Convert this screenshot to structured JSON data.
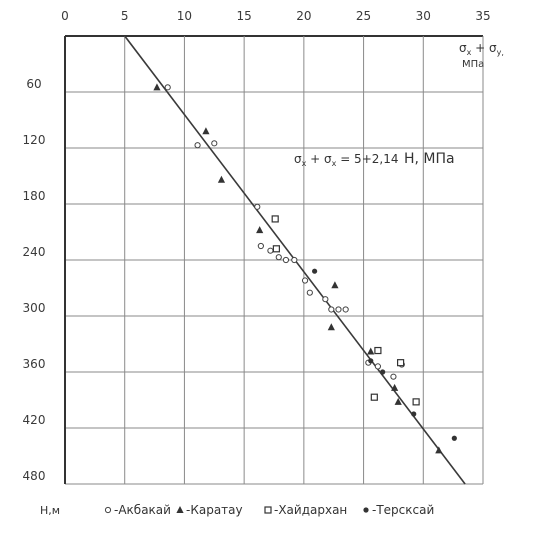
{
  "chart_data": {
    "type": "scatter",
    "x_label_line1": "σ",
    "x_label_sub1": "x",
    "x_label_plus": " + σ",
    "x_label_sub2": "y,",
    "x_label_unit": "МПа",
    "y_label": "Н,м",
    "equation_prefix": "σ",
    "equation_sub1": "x",
    "equation_mid": " + σ",
    "equation_sub2": "x",
    "equation_rest": " = 5+2,14",
    "equation_unit": "Н, МПа",
    "xlim": [
      0,
      35
    ],
    "ylim": [
      0,
      480
    ],
    "x_ticks": [
      "0",
      "5",
      "10",
      "15",
      "20",
      "25",
      "30",
      "35"
    ],
    "y_ticks": [
      "60",
      "120",
      "180",
      "240",
      "300",
      "360",
      "420",
      "480"
    ],
    "regression_line": {
      "x": [
        5.0,
        33.5
      ],
      "y": [
        0,
        480
      ]
    },
    "series": [
      {
        "name": "-Акбакай",
        "marker": "open-circle",
        "points": [
          [
            8.6,
            55
          ],
          [
            11.1,
            117
          ],
          [
            12.5,
            115
          ],
          [
            16.1,
            183
          ],
          [
            16.4,
            225
          ],
          [
            17.2,
            230
          ],
          [
            17.9,
            237
          ],
          [
            18.5,
            240
          ],
          [
            19.2,
            240
          ],
          [
            20.1,
            262
          ],
          [
            20.5,
            275
          ],
          [
            21.8,
            282
          ],
          [
            22.3,
            293
          ],
          [
            22.9,
            293
          ],
          [
            23.5,
            293
          ],
          [
            25.4,
            350
          ],
          [
            26.2,
            354
          ],
          [
            27.5,
            365
          ],
          [
            28.2,
            352
          ]
        ]
      },
      {
        "name": "-Каратау",
        "marker": "filled-triangle",
        "points": [
          [
            7.7,
            55
          ],
          [
            11.8,
            102
          ],
          [
            13.1,
            154
          ],
          [
            16.3,
            208
          ],
          [
            22.3,
            312
          ],
          [
            22.6,
            267
          ],
          [
            25.6,
            338
          ],
          [
            27.6,
            377
          ],
          [
            27.9,
            392
          ],
          [
            31.3,
            444
          ]
        ]
      },
      {
        "name": "-Хайдархан",
        "marker": "open-square",
        "points": [
          [
            17.6,
            196
          ],
          [
            17.7,
            228
          ],
          [
            25.9,
            387
          ],
          [
            26.2,
            337
          ],
          [
            28.1,
            350
          ],
          [
            29.4,
            392
          ]
        ]
      },
      {
        "name": "-Терсксай",
        "marker": "filled-circle",
        "points": [
          [
            20.9,
            252
          ],
          [
            25.6,
            348
          ],
          [
            26.6,
            360
          ],
          [
            29.2,
            405
          ],
          [
            32.6,
            431
          ]
        ]
      }
    ]
  }
}
